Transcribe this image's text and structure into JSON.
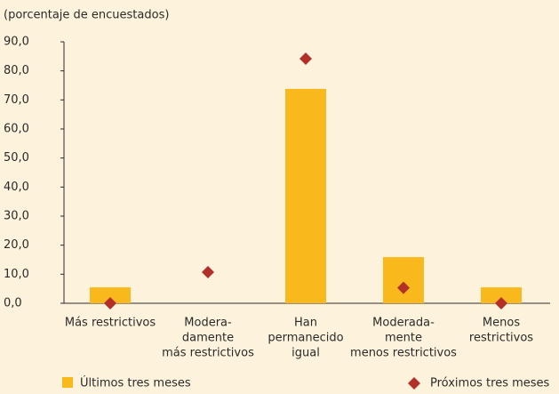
{
  "chart_data": {
    "type": "bar",
    "subtitle": "(porcentaje de encuestados)",
    "categories": [
      [
        "Más restrictivos"
      ],
      [
        "Modera-",
        "damente",
        "más restrictivos"
      ],
      [
        "Han",
        "permanecido",
        "igual"
      ],
      [
        "Moderada-",
        "mente",
        "menos restrictivos"
      ],
      [
        "Menos",
        "restrictivos"
      ]
    ],
    "series": [
      {
        "name": "Últimos tres meses",
        "type": "bar",
        "color": "#f9b91c",
        "values": [
          5.5,
          0,
          73.8,
          15.9,
          5.5
        ]
      },
      {
        "name": "Próximos tres meses",
        "type": "scatter",
        "color": "#b3302a",
        "values": [
          0,
          10.7,
          84.2,
          5.3,
          0
        ]
      }
    ],
    "ylim": [
      0,
      90
    ],
    "yticks": [
      {
        "value": 0,
        "label": "0,0"
      },
      {
        "value": 10,
        "label": "10,0"
      },
      {
        "value": 20,
        "label": "20,0"
      },
      {
        "value": 30,
        "label": "30,0"
      },
      {
        "value": 40,
        "label": "40,0"
      },
      {
        "value": 50,
        "label": "50,0"
      },
      {
        "value": 60,
        "label": "60,0"
      },
      {
        "value": 70,
        "label": "70,0"
      },
      {
        "value": 80,
        "label": "80,0"
      },
      {
        "value": 90,
        "label": "90,0"
      }
    ]
  }
}
